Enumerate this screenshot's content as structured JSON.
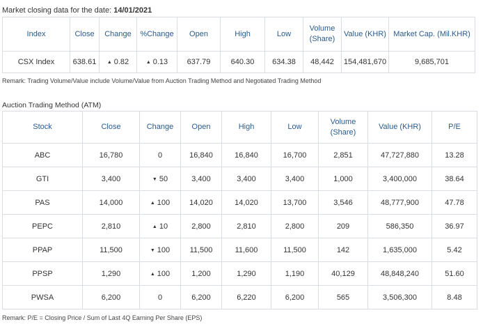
{
  "market": {
    "caption_prefix": "Market closing data for the date:",
    "caption_date": "14/01/2021",
    "headers": [
      "Index",
      "Close",
      "Change",
      "%Change",
      "Open",
      "High",
      "Low",
      "Volume (Share)",
      "Value (KHR)",
      "Market Cap. (Mil.KHR)"
    ],
    "row": {
      "index": "CSX Index",
      "close": "638.61",
      "change": "0.82",
      "change_dir": "up",
      "pct_change": "0.13",
      "pct_dir": "up",
      "open": "637.79",
      "high": "640.30",
      "low": "634.38",
      "volume": "48,442",
      "value": "154,481,670",
      "market_cap": "9,685,701"
    },
    "remark": "Remark: Trading Volume/Value include Volume/Value from Auction Trading Method and Negotiated Trading Method"
  },
  "atm": {
    "title": "Auction Trading Method (ATM)",
    "headers": [
      "Stock",
      "Close",
      "Change",
      "Open",
      "High",
      "Low",
      "Volume (Share)",
      "Value (KHR)",
      "P/E"
    ],
    "rows": [
      {
        "stock": "ABC",
        "close": "16,780",
        "change": "0",
        "dir": "none",
        "open": "16,840",
        "high": "16,840",
        "low": "16,700",
        "volume": "2,851",
        "value": "47,727,880",
        "pe": "13.28"
      },
      {
        "stock": "GTI",
        "close": "3,400",
        "change": "50",
        "dir": "down",
        "open": "3,400",
        "high": "3,400",
        "low": "3,400",
        "volume": "1,000",
        "value": "3,400,000",
        "pe": "38.64"
      },
      {
        "stock": "PAS",
        "close": "14,000",
        "change": "100",
        "dir": "up",
        "open": "14,020",
        "high": "14,020",
        "low": "13,700",
        "volume": "3,546",
        "value": "48,777,900",
        "pe": "47.78"
      },
      {
        "stock": "PEPC",
        "close": "2,810",
        "change": "10",
        "dir": "up",
        "open": "2,800",
        "high": "2,810",
        "low": "2,800",
        "volume": "209",
        "value": "586,350",
        "pe": "36.97"
      },
      {
        "stock": "PPAP",
        "close": "11,500",
        "change": "100",
        "dir": "down",
        "open": "11,500",
        "high": "11,600",
        "low": "11,500",
        "volume": "142",
        "value": "1,635,000",
        "pe": "5.42"
      },
      {
        "stock": "PPSP",
        "close": "1,290",
        "change": "100",
        "dir": "up",
        "open": "1,200",
        "high": "1,290",
        "low": "1,190",
        "volume": "40,129",
        "value": "48,848,240",
        "pe": "51.60"
      },
      {
        "stock": "PWSA",
        "close": "6,200",
        "change": "0",
        "dir": "none",
        "open": "6,200",
        "high": "6,220",
        "low": "6,200",
        "volume": "565",
        "value": "3,506,300",
        "pe": "8.48"
      }
    ],
    "remark": "Remark: P/E = Closing Price / Sum of Last 4Q Earning Per Share (EPS)"
  },
  "colors": {
    "header_text": "#2a5a8c",
    "up": "#2e9a3a",
    "down": "#d63a2a",
    "border": "#d9dde3"
  },
  "icons": {
    "up": "triangle-up-icon",
    "down": "triangle-down-icon"
  }
}
